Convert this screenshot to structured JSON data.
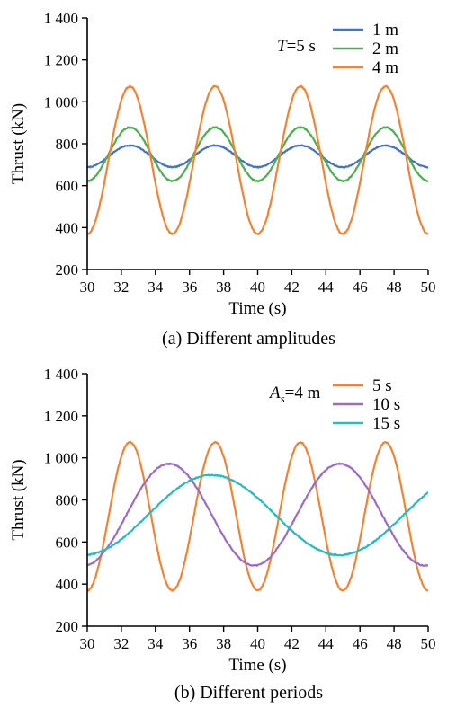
{
  "chart_data": [
    {
      "type": "line",
      "caption": "(a) Different amplitudes",
      "xlabel": "Time (s)",
      "ylabel": "Thrust (kN)",
      "xlim": [
        30,
        50
      ],
      "ylim": [
        200,
        1400
      ],
      "xticks": [
        30,
        32,
        34,
        36,
        38,
        40,
        42,
        44,
        46,
        48,
        50
      ],
      "yticks": [
        200,
        400,
        600,
        800,
        1000,
        1200,
        1400
      ],
      "ytick_labels": [
        "200",
        "400",
        "600",
        "800",
        "1 000",
        "1 200",
        "1 400"
      ],
      "annotation": {
        "symbol": "T",
        "rest": "=5 s"
      },
      "legend_position": "top-right",
      "series": [
        {
          "name": "1 m",
          "color": "#4472c4",
          "mean": 740,
          "amplitude": 52,
          "period": 5,
          "peak_time": 32.5,
          "noise": 4
        },
        {
          "name": "2 m",
          "color": "#4caf50",
          "mean": 750,
          "amplitude": 128,
          "period": 5,
          "peak_time": 32.5,
          "noise": 5
        },
        {
          "name": "4 m",
          "color": "#f58231",
          "mean": 722,
          "amplitude": 352,
          "period": 5,
          "peak_time": 32.5,
          "noise": 6
        }
      ]
    },
    {
      "type": "line",
      "caption": "(b) Different periods",
      "xlabel": "Time (s)",
      "ylabel": "Thrust (kN)",
      "xlim": [
        30,
        50
      ],
      "ylim": [
        200,
        1400
      ],
      "xticks": [
        30,
        32,
        34,
        36,
        38,
        40,
        42,
        44,
        46,
        48,
        50
      ],
      "yticks": [
        200,
        400,
        600,
        800,
        1000,
        1200,
        1400
      ],
      "ytick_labels": [
        "200",
        "400",
        "600",
        "800",
        "1 000",
        "1 200",
        "1 400"
      ],
      "annotation": {
        "symbol": "A",
        "sub": "s",
        "rest": "=4 m"
      },
      "legend_position": "top-right",
      "series": [
        {
          "name": "5 s",
          "color": "#f58231",
          "mean": 722,
          "amplitude": 352,
          "period": 5,
          "peak_time": 32.5,
          "noise": 6
        },
        {
          "name": "10 s",
          "color": "#9d6bc7",
          "mean": 730,
          "amplitude": 242,
          "period": 10,
          "peak_time": 34.8,
          "noise": 5
        },
        {
          "name": "15 s",
          "color": "#26bcc0",
          "mean": 728,
          "amplitude": 190,
          "period": 15,
          "peak_time": 37.3,
          "noise": 5
        }
      ]
    }
  ]
}
